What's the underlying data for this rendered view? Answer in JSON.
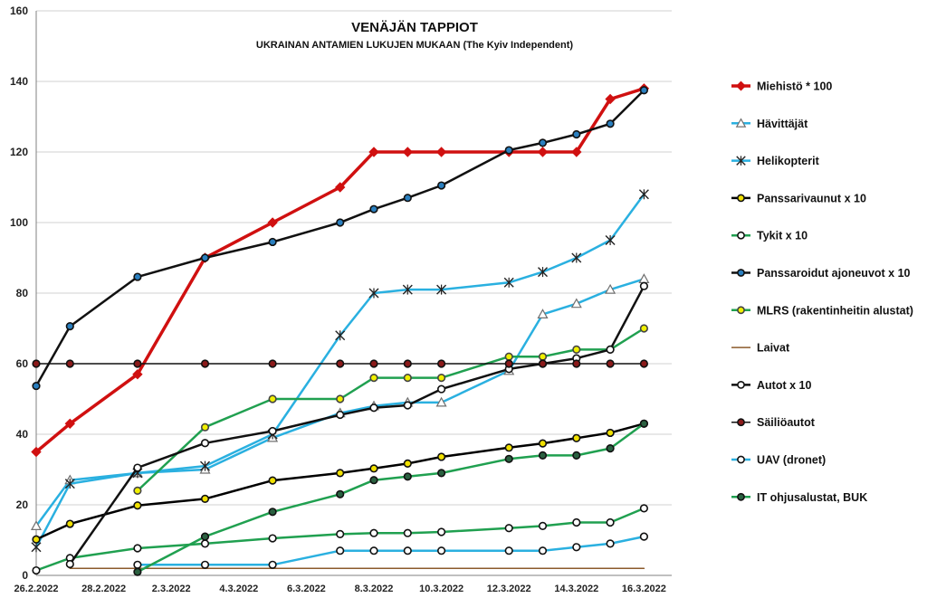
{
  "chart_data": {
    "type": "line",
    "title": "VENÄJÄN TAPPIOT",
    "subtitle": "UKRAINAN ANTAMIEN LUKUJEN MUKAAN (The Kyiv Independent)",
    "xlabel": "",
    "ylabel": "",
    "ylim": [
      0,
      160
    ],
    "yticks": [
      0,
      20,
      40,
      60,
      80,
      100,
      120,
      140,
      160
    ],
    "xlim": [
      0,
      18.8
    ],
    "xticks": [
      {
        "x": 0,
        "label": "26.2.2022"
      },
      {
        "x": 2,
        "label": "28.2.2022"
      },
      {
        "x": 4,
        "label": "2.3.2022"
      },
      {
        "x": 6,
        "label": "4.3.2022"
      },
      {
        "x": 8,
        "label": "6.3.2022"
      },
      {
        "x": 10,
        "label": "8.3.2022"
      },
      {
        "x": 12,
        "label": "10.3.2022"
      },
      {
        "x": 14,
        "label": "12.3.2022"
      },
      {
        "x": 16,
        "label": "14.3.2022"
      },
      {
        "x": 18,
        "label": "16.3.2022"
      }
    ],
    "grid": true,
    "legend_position": "right",
    "series": [
      {
        "name": "Miehistö * 100",
        "color": "#d01010",
        "marker": "diamond",
        "fill": "#d01010",
        "width": 3.5,
        "points": [
          [
            0,
            35
          ],
          [
            1,
            43
          ],
          [
            3,
            57
          ],
          [
            5,
            90
          ],
          [
            7,
            100
          ],
          [
            9,
            110
          ],
          [
            10,
            120
          ],
          [
            11,
            120
          ],
          [
            12,
            120
          ],
          [
            14,
            120
          ],
          [
            15,
            120
          ],
          [
            16,
            120
          ],
          [
            17,
            135
          ],
          [
            18,
            138
          ]
        ]
      },
      {
        "name": "Hävittäjät",
        "color": "#2ab0e0",
        "marker": "triangle",
        "fill": "#ffffff",
        "width": 2.5,
        "points": [
          [
            0,
            14
          ],
          [
            1,
            27
          ],
          [
            3,
            29
          ],
          [
            5,
            30
          ],
          [
            7,
            39
          ],
          [
            9,
            46
          ],
          [
            10,
            48
          ],
          [
            11,
            49
          ],
          [
            12,
            49
          ],
          [
            14,
            58
          ],
          [
            15,
            74
          ],
          [
            16,
            77
          ],
          [
            17,
            81
          ],
          [
            18,
            84
          ]
        ]
      },
      {
        "name": "Helikopterit",
        "color": "#2ab0e0",
        "marker": "star",
        "fill": "#ffffff",
        "width": 2.5,
        "points": [
          [
            0,
            8
          ],
          [
            1,
            26
          ],
          [
            3,
            29
          ],
          [
            5,
            31
          ],
          [
            7,
            40
          ],
          [
            9,
            68
          ],
          [
            10,
            80
          ],
          [
            11,
            81
          ],
          [
            12,
            81
          ],
          [
            14,
            83
          ],
          [
            15,
            86
          ],
          [
            16,
            90
          ],
          [
            17,
            95
          ],
          [
            18,
            108
          ]
        ]
      },
      {
        "name": "Panssarivaunut x 10",
        "color": "#000000",
        "marker": "circle",
        "fill": "#f0e000",
        "width": 2.5,
        "points": [
          [
            0,
            10.2
          ],
          [
            1,
            14.6
          ],
          [
            3,
            19.8
          ],
          [
            5,
            21.7
          ],
          [
            7,
            26.9
          ],
          [
            9,
            29
          ],
          [
            10,
            30.3
          ],
          [
            11,
            31.7
          ],
          [
            12,
            33.6
          ],
          [
            14,
            36.2
          ],
          [
            15,
            37.4
          ],
          [
            16,
            38.9
          ],
          [
            17,
            40.4
          ],
          [
            18,
            43
          ]
        ]
      },
      {
        "name": "Tykit x 10",
        "color": "#20a050",
        "marker": "circle",
        "fill": "#ffffff",
        "width": 2.5,
        "points": [
          [
            0,
            1.4
          ],
          [
            1,
            4.9
          ],
          [
            3,
            7.7
          ],
          [
            5,
            9
          ],
          [
            7,
            10.5
          ],
          [
            9,
            11.7
          ],
          [
            10,
            12
          ],
          [
            11,
            12
          ],
          [
            12,
            12.3
          ],
          [
            14,
            13.4
          ],
          [
            15,
            14
          ],
          [
            16,
            15
          ],
          [
            17,
            15
          ],
          [
            18,
            19
          ]
        ]
      },
      {
        "name": "Panssaroidut ajoneuvot x 10",
        "color": "#111111",
        "marker": "circle",
        "fill": "#2a7fbf",
        "width": 2.5,
        "points": [
          [
            0,
            53.7
          ],
          [
            1,
            70.6
          ],
          [
            3,
            84.6
          ],
          [
            5,
            90
          ],
          [
            7,
            94.5
          ],
          [
            9,
            100
          ],
          [
            10,
            103.8
          ],
          [
            11,
            107
          ],
          [
            12,
            110.5
          ],
          [
            14,
            120.5
          ],
          [
            15,
            122.6
          ],
          [
            16,
            125
          ],
          [
            17,
            128
          ],
          [
            18,
            137.5
          ]
        ]
      },
      {
        "name": "MLRS (rakentinheitin alustat)",
        "color": "#20a050",
        "marker": "circle",
        "fill": "#f0f000",
        "width": 2.5,
        "points": [
          [
            3,
            24
          ],
          [
            5,
            42
          ],
          [
            7,
            50
          ],
          [
            9,
            50
          ],
          [
            10,
            56
          ],
          [
            11,
            56
          ],
          [
            12,
            56
          ],
          [
            14,
            62
          ],
          [
            15,
            62
          ],
          [
            16,
            64
          ],
          [
            17,
            64
          ],
          [
            18,
            70
          ]
        ]
      },
      {
        "name": "Laivat",
        "color": "#8b5a2b",
        "marker": "none",
        "fill": "none",
        "width": 1.5,
        "points": [
          [
            1,
            2
          ],
          [
            18,
            2
          ]
        ]
      },
      {
        "name": "Autot x 10",
        "color": "#111111",
        "marker": "circle",
        "fill": "#ffffff",
        "width": 2.5,
        "points": [
          [
            1,
            3.2
          ],
          [
            3,
            30.5
          ],
          [
            5,
            37.5
          ],
          [
            7,
            40.9
          ],
          [
            9,
            45.5
          ],
          [
            10,
            47.5
          ],
          [
            11,
            48.2
          ],
          [
            12,
            52.8
          ],
          [
            14,
            58.5
          ],
          [
            15,
            60
          ],
          [
            16,
            61.5
          ],
          [
            17,
            64
          ],
          [
            18,
            82
          ]
        ]
      },
      {
        "name": "Säiliöautot",
        "color": "#111111",
        "marker": "circle",
        "fill": "#8b1a1a",
        "width": 1.5,
        "points": [
          [
            0,
            60
          ],
          [
            1,
            60
          ],
          [
            3,
            60
          ],
          [
            5,
            60
          ],
          [
            7,
            60
          ],
          [
            9,
            60
          ],
          [
            10,
            60
          ],
          [
            11,
            60
          ],
          [
            12,
            60
          ],
          [
            14,
            60
          ],
          [
            15,
            60
          ],
          [
            16,
            60
          ],
          [
            17,
            60
          ],
          [
            18,
            60
          ]
        ]
      },
      {
        "name": "UAV (dronet)",
        "color": "#2ab0e0",
        "marker": "circle",
        "fill": "#ffffff",
        "width": 2.5,
        "points": [
          [
            3,
            3
          ],
          [
            5,
            3
          ],
          [
            7,
            3
          ],
          [
            9,
            7
          ],
          [
            10,
            7
          ],
          [
            11,
            7
          ],
          [
            12,
            7
          ],
          [
            14,
            7
          ],
          [
            15,
            7
          ],
          [
            16,
            8
          ],
          [
            17,
            9
          ],
          [
            18,
            11
          ]
        ]
      },
      {
        "name": "IT ohjusalustat, BUK",
        "color": "#20a050",
        "marker": "circle",
        "fill": "#2a6040",
        "width": 2.5,
        "points": [
          [
            3,
            1
          ],
          [
            5,
            11
          ],
          [
            7,
            18
          ],
          [
            9,
            23
          ],
          [
            10,
            27
          ],
          [
            11,
            28
          ],
          [
            12,
            29
          ],
          [
            14,
            33
          ],
          [
            15,
            34
          ],
          [
            16,
            34
          ],
          [
            17,
            36
          ],
          [
            18,
            43
          ]
        ]
      }
    ]
  }
}
